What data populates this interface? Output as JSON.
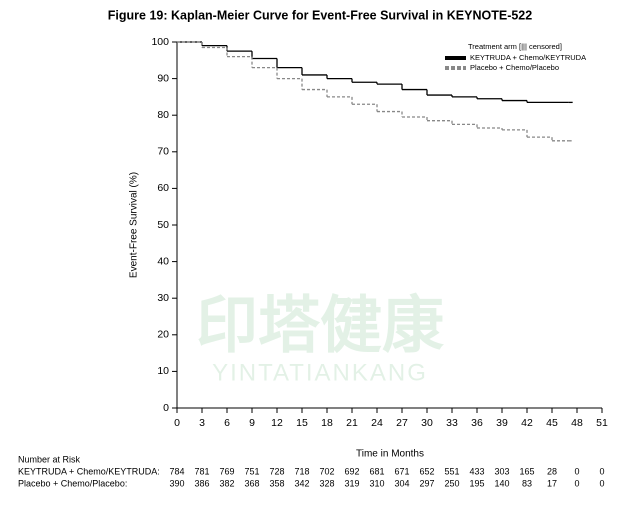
{
  "chart_data": {
    "type": "step",
    "title": "Figure 19: Kaplan-Meier Curve for Event-Free Survival in KEYNOTE-522",
    "x_label": "Time in Months",
    "y_label": "Event-Free Survival (%)",
    "legend_title": "Treatment arm [||| censored]",
    "legend_position": "upper right",
    "x": [
      0,
      3,
      6,
      9,
      12,
      15,
      18,
      21,
      24,
      27,
      30,
      33,
      36,
      39,
      42,
      45,
      47
    ],
    "series": [
      {
        "name": "KEYTRUDA + Chemo/KEYTRUDA",
        "color": "#000000",
        "dashed": false,
        "values": [
          100,
          99,
          97.5,
          95.5,
          93,
          91,
          90,
          89,
          88.5,
          87,
          85.5,
          85,
          84.5,
          84,
          83.5,
          83.5,
          83.5
        ]
      },
      {
        "name": "Placebo + Chemo/Placebo",
        "color": "#888888",
        "dashed": true,
        "values": [
          100,
          98.5,
          96,
          93,
          90,
          87,
          85,
          83,
          81,
          79.5,
          78.5,
          77.5,
          76.5,
          76,
          74,
          73,
          73
        ]
      }
    ],
    "xlim": [
      0,
      51
    ],
    "xticks": [
      0,
      3,
      6,
      9,
      12,
      15,
      18,
      21,
      24,
      27,
      30,
      33,
      36,
      39,
      42,
      45,
      48,
      51
    ],
    "ylim": [
      0,
      100
    ],
    "yticks": [
      0,
      10,
      20,
      30,
      40,
      50,
      60,
      70,
      80,
      90,
      100
    ],
    "risk_table": {
      "title": "Number at Risk",
      "rows": [
        {
          "label": "KEYTRUDA + Chemo/KEYTRUDA:",
          "values": [
            784,
            781,
            769,
            751,
            728,
            718,
            702,
            692,
            681,
            671,
            652,
            551,
            433,
            303,
            165,
            28,
            0,
            0
          ]
        },
        {
          "label": "Placebo + Chemo/Placebo:",
          "values": [
            390,
            386,
            382,
            368,
            358,
            342,
            328,
            319,
            310,
            304,
            297,
            250,
            195,
            140,
            83,
            17,
            0,
            0
          ]
        }
      ]
    },
    "watermark": [
      "印塔健康",
      "YINTATIANKANG"
    ]
  }
}
